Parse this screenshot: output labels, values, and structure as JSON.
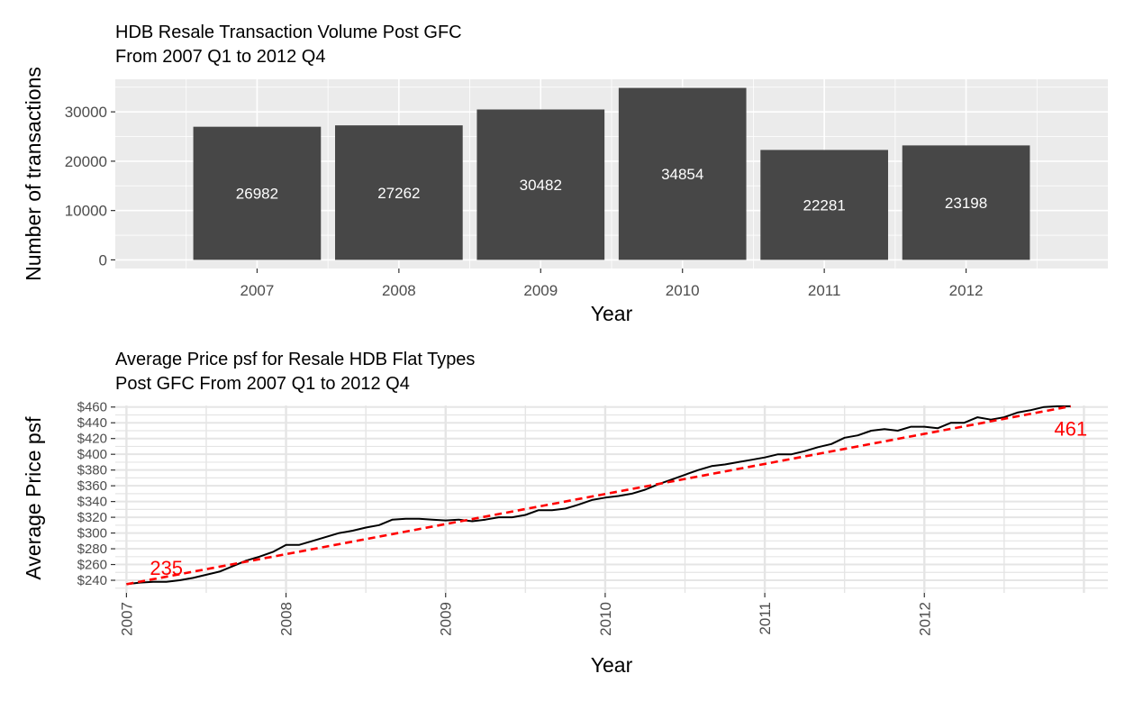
{
  "chart_data": [
    {
      "type": "bar",
      "title": "HDB Resale Transaction Volume Post GFC",
      "subtitle": "From 2007 Q1 to 2012 Q4",
      "xlabel": "Year",
      "ylabel": "Number of transactions",
      "categories": [
        "2007",
        "2008",
        "2009",
        "2010",
        "2011",
        "2012"
      ],
      "values": [
        26982,
        27262,
        30482,
        34854,
        22281,
        23198
      ],
      "data_labels": [
        "26982",
        "27262",
        "30482",
        "34854",
        "22281",
        "23198"
      ],
      "y_ticks": [
        0,
        10000,
        20000,
        30000
      ],
      "y_tick_labels": [
        "0",
        "10000",
        "20000",
        "30000"
      ],
      "ylim": [
        -1750,
        36600
      ],
      "grid": true,
      "colors": {
        "bar": "#474747",
        "panel": "#ebebeb",
        "grid": "#ffffff",
        "label": "#ffffff"
      }
    },
    {
      "type": "line",
      "title": "Average Price psf for Resale HDB Flat Types",
      "subtitle": "Post GFC From 2007 Q1 to 2012 Q4",
      "xlabel": "Year",
      "ylabel": "Average Price psf",
      "x_tick_labels": [
        "2007",
        "2008",
        "2009",
        "2010",
        "2011",
        "2012"
      ],
      "x_ticks": [
        2007,
        2008,
        2009,
        2010,
        2011,
        2012
      ],
      "xlim": [
        2006.93,
        2013.15
      ],
      "y_ticks": [
        240,
        260,
        280,
        300,
        320,
        340,
        360,
        380,
        400,
        420,
        440,
        460
      ],
      "y_tick_labels": [
        "$240",
        "$260",
        "$280",
        "$300",
        "$320",
        "$340",
        "$360",
        "$380",
        "$400",
        "$420",
        "$440",
        "$460"
      ],
      "ylim": [
        224,
        462
      ],
      "grid": true,
      "series": [
        {
          "x": [
            2007.0,
            2007.083,
            2007.167,
            2007.25,
            2007.333,
            2007.417,
            2007.5,
            2007.583,
            2007.667,
            2007.75,
            2007.833,
            2007.917,
            2008.0,
            2008.083,
            2008.167,
            2008.25,
            2008.333,
            2008.417,
            2008.5,
            2008.583,
            2008.667,
            2008.75,
            2008.833,
            2008.917,
            2009.0,
            2009.083,
            2009.167,
            2009.25,
            2009.333,
            2009.417,
            2009.5,
            2009.583,
            2009.667,
            2009.75,
            2009.833,
            2009.917,
            2010.0,
            2010.083,
            2010.167,
            2010.25,
            2010.333,
            2010.417,
            2010.5,
            2010.583,
            2010.667,
            2010.75,
            2010.833,
            2010.917,
            2011.0,
            2011.083,
            2011.167,
            2011.25,
            2011.333,
            2011.417,
            2011.5,
            2011.583,
            2011.667,
            2011.75,
            2011.833,
            2011.917,
            2012.0,
            2012.083,
            2012.167,
            2012.25,
            2012.333,
            2012.417,
            2012.5,
            2012.583,
            2012.667,
            2012.75,
            2012.833,
            2012.917
          ],
          "y": [
            235,
            237,
            238,
            238,
            240,
            243,
            247,
            251,
            258,
            265,
            270,
            276,
            285,
            285,
            290,
            295,
            300,
            303,
            307,
            310,
            317,
            318,
            318,
            317,
            316,
            317,
            315,
            317,
            320,
            320,
            323,
            329,
            329,
            331,
            336,
            342,
            345,
            347,
            350,
            355,
            362,
            368,
            374,
            380,
            385,
            387,
            390,
            393,
            396,
            400,
            400,
            404,
            409,
            413,
            421,
            424,
            430,
            432,
            430,
            435,
            435,
            433,
            440,
            440,
            447,
            444,
            447,
            453,
            456,
            460,
            461,
            461
          ],
          "color": "#000000"
        },
        {
          "x": [
            2007.0,
            2012.917
          ],
          "y": [
            235,
            461
          ],
          "color": "#ff0000",
          "dashed": true
        }
      ],
      "annotations": [
        {
          "label": "235",
          "x": 2007.25,
          "y": 256,
          "color": "#ff0000"
        },
        {
          "label": "461",
          "x": 2012.917,
          "y": 433,
          "color": "#ff0000"
        }
      ],
      "colors": {
        "panel": "#ffffff",
        "grid": "#e5e5e5",
        "line": "#000000",
        "trend": "#ff0000"
      }
    }
  ]
}
